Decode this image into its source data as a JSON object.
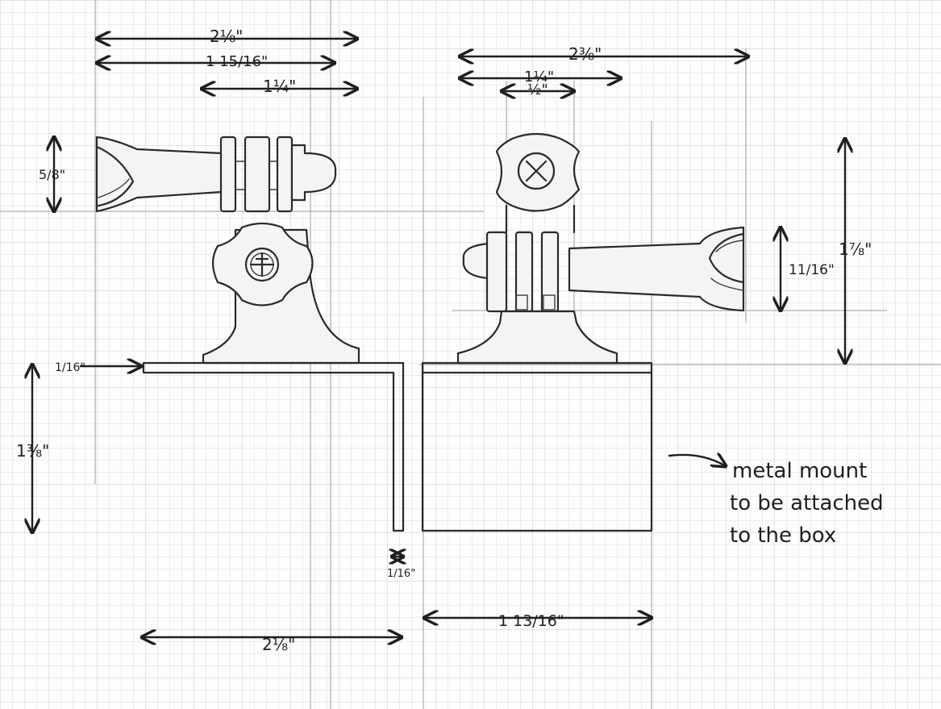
{
  "dimensions": {
    "left_top_overall": "2⅛\"",
    "left_second": "1 15/16\"",
    "left_third": "1¼\"",
    "left_arm_height": "5/8\"",
    "left_plate_thickness": "1/16\"",
    "left_body_height": "1⅜\"",
    "left_wall_thickness": "1/16\"",
    "left_bottom_width": "2⅛\"",
    "right_top_overall": "2⅜\"",
    "right_second": "1¼\"",
    "right_third": "½\"",
    "right_arm_height": "11/16\"",
    "right_total_height": "1⅞\"",
    "right_bottom_width": "1 13/16\""
  },
  "annotation": {
    "line1": "metal mount",
    "line2": "to be attached",
    "line3": "to the box"
  }
}
